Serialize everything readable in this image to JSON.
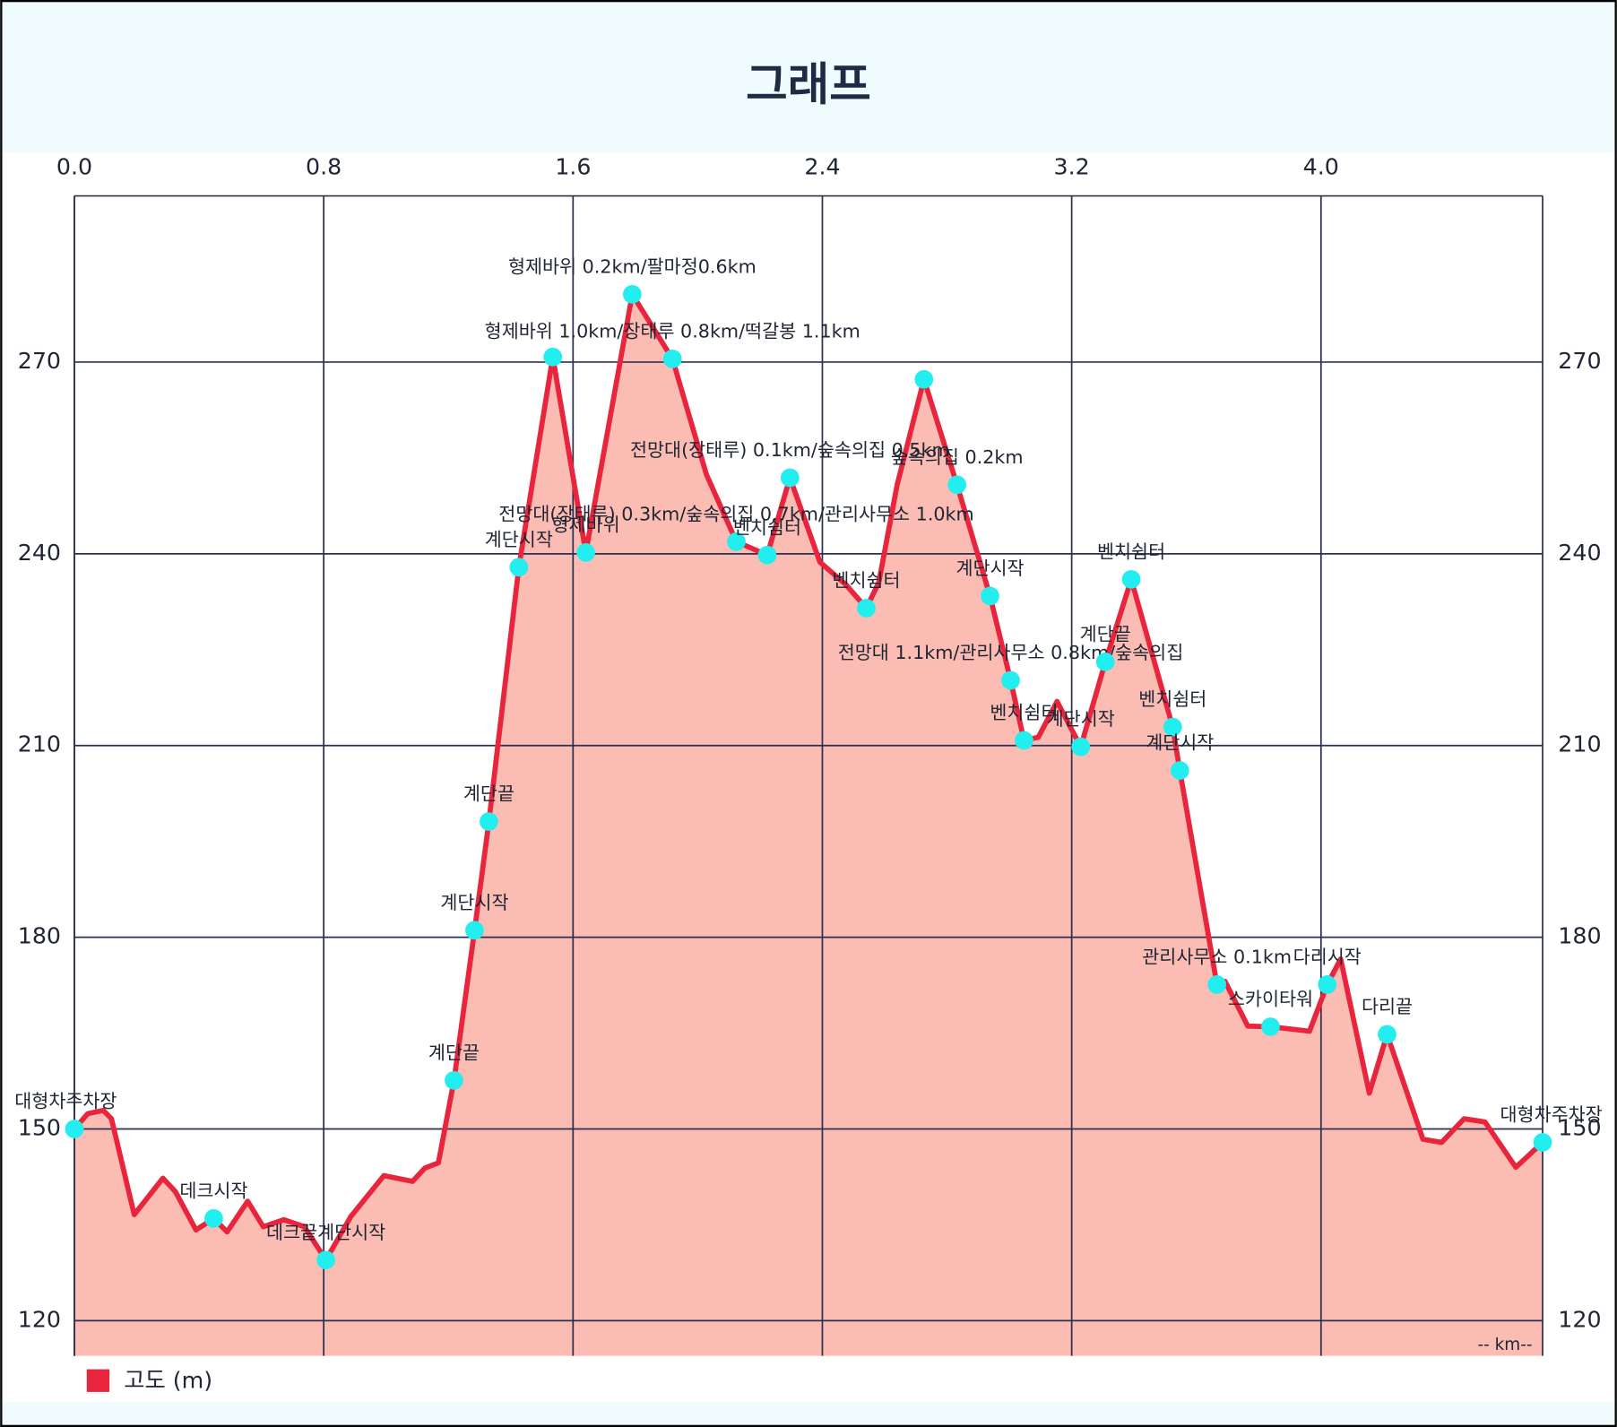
{
  "chart_data": {
    "type": "line",
    "title": "그래프",
    "x_unit_note": "-- km--",
    "xlim": [
      0,
      4.711
    ],
    "xticks": [
      {
        "value": 0,
        "label": "0.0"
      },
      0.8,
      1.6,
      2.4,
      3.2,
      {
        "value": 4,
        "label": "4.0"
      }
    ],
    "ylim": [
      114.5,
      296
    ],
    "yticks": [
      120,
      150,
      180,
      210,
      240,
      270
    ],
    "grid": true,
    "legend": "bottom-left",
    "area_color": "#fbbcb3",
    "series": [
      {
        "name": "고도 (m)",
        "color": "#e8253c",
        "x": [
          0,
          0.043,
          0.093,
          0.119,
          0.192,
          0.284,
          0.324,
          0.39,
          0.447,
          0.49,
          0.556,
          0.606,
          0.672,
          0.738,
          0.807,
          0.887,
          0.993,
          1.085,
          1.125,
          1.168,
          1.218,
          1.284,
          1.33,
          1.426,
          1.535,
          1.641,
          1.79,
          1.919,
          2.028,
          2.124,
          2.223,
          2.296,
          2.392,
          2.475,
          2.541,
          2.581,
          2.64,
          2.726,
          2.832,
          2.938,
          3.004,
          3.047,
          3.093,
          3.153,
          3.229,
          3.308,
          3.391,
          3.524,
          3.547,
          3.666,
          3.692,
          3.765,
          3.838,
          3.963,
          4.02,
          4.063,
          4.155,
          4.212,
          4.327,
          4.387,
          4.459,
          4.526,
          4.625,
          4.711
        ],
        "values": [
          150,
          152.4,
          152.9,
          151.6,
          136.6,
          142.3,
          140.2,
          134.2,
          136,
          133.9,
          138.7,
          134.7,
          135.8,
          134.7,
          129.5,
          136.3,
          142.7,
          141.8,
          143.9,
          144.7,
          157.6,
          181.1,
          198.1,
          237.9,
          270.8,
          240.2,
          280.6,
          270.5,
          252.4,
          241.9,
          239.8,
          251.9,
          238.7,
          235.2,
          231.5,
          235.5,
          250.8,
          267.3,
          250.8,
          233.4,
          220.2,
          210.8,
          211.3,
          216.9,
          209.8,
          223.1,
          236,
          212.9,
          206.1,
          172.6,
          173.1,
          166.1,
          166,
          165.3,
          172.6,
          176.6,
          155.6,
          164.8,
          148.4,
          147.9,
          151.6,
          151.1,
          144,
          147.9
        ]
      }
    ],
    "points": {
      "color": "#22eef0",
      "x": [
        0,
        0.447,
        0.807,
        1.218,
        1.284,
        1.33,
        1.426,
        1.535,
        1.641,
        1.79,
        1.919,
        2.124,
        2.223,
        2.296,
        2.541,
        2.726,
        2.832,
        2.938,
        3.004,
        3.047,
        3.229,
        3.308,
        3.391,
        3.524,
        3.547,
        3.666,
        3.838,
        4.02,
        4.212,
        4.711
      ],
      "values": [
        150,
        136,
        129.5,
        157.6,
        181.1,
        198.1,
        237.9,
        270.8,
        240.2,
        280.6,
        270.5,
        241.9,
        239.8,
        251.9,
        231.5,
        267.3,
        250.8,
        233.4,
        220.2,
        210.8,
        209.8,
        223.1,
        236,
        212.9,
        206.1,
        172.6,
        166,
        172.6,
        164.8,
        147.9
      ],
      "labels": [
        "대형차주차장",
        "데크시작",
        "데크끝계단시작",
        "계단끝",
        "계단시작",
        "계단끝",
        "계단시작",
        null,
        "형제바위",
        "형제바위 0.2km/팔마정0.6km",
        "형제바위 1.0km/장태루 0.8km/떡갈봉 1.1km",
        "전망대(장태루) 0.3km/숲속의집 0.7km/관리사무소 1.0km",
        "벤치쉼터",
        "전망대(장태루) 0.1km/숲속의집 0.5km",
        "벤치쉼터",
        null,
        "숲속의집 0.2km",
        "계단시작",
        "전망대 1.1km/관리사무소 0.8km/숲속의집",
        "벤치쉼터",
        "계단시작",
        "계단끝",
        "벤치쉼터",
        "벤치쉼터",
        "계단시작",
        "관리사무소 0.1km",
        "스카이타워",
        "다리시작",
        "다리끝",
        "대형차주차장"
      ]
    }
  }
}
